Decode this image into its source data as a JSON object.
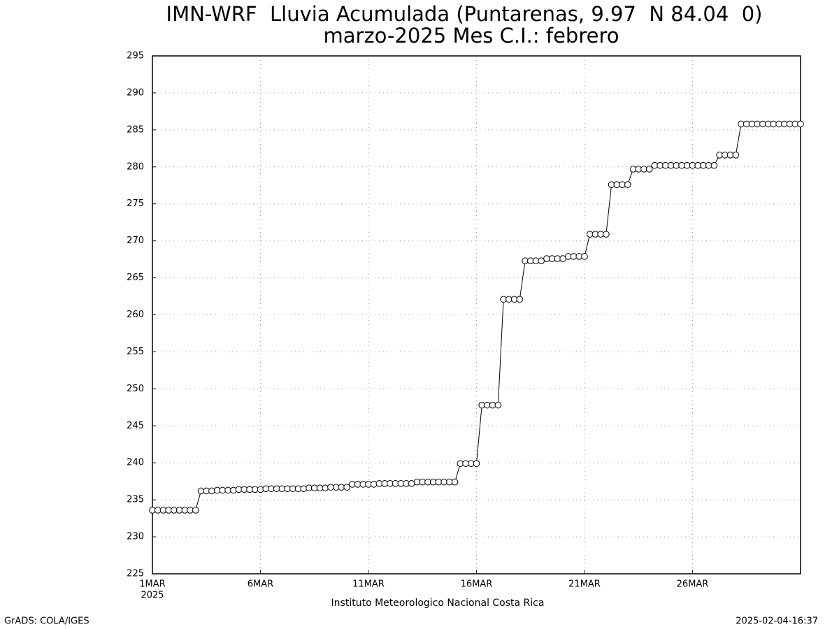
{
  "chart_data": {
    "type": "line",
    "title": "IMN-WRF  Lluvia Acumulada (Puntarenas, 9.97  N 84.04  0)",
    "subtitle": "marzo-2025 Mes C.I.: febrero",
    "x_label": "Instituto Meteorologico Nacional Costa Rica",
    "x_sublabel": "2025",
    "footer_left": "GrADS: COLA/IGES",
    "footer_right": "2025-02-04-16:37",
    "categories": [
      "1MAR",
      null,
      null,
      null,
      null,
      null,
      null,
      null,
      null,
      null,
      null,
      null,
      null,
      null,
      null,
      null,
      null,
      null,
      null,
      null,
      "6MAR",
      null,
      null,
      null,
      null,
      null,
      null,
      null,
      null,
      null,
      null,
      null,
      null,
      null,
      null,
      null,
      null,
      null,
      null,
      null,
      "11MAR",
      null,
      null,
      null,
      null,
      null,
      null,
      null,
      null,
      null,
      null,
      null,
      null,
      null,
      null,
      null,
      null,
      null,
      null,
      null,
      "16MAR",
      null,
      null,
      null,
      null,
      null,
      null,
      null,
      null,
      null,
      null,
      null,
      null,
      null,
      null,
      null,
      null,
      null,
      null,
      null,
      "21MAR",
      null,
      null,
      null,
      null,
      null,
      null,
      null,
      null,
      null,
      null,
      null,
      null,
      null,
      null,
      null,
      null,
      null,
      null,
      null,
      "26MAR",
      null,
      null,
      null,
      null,
      null,
      null,
      null,
      null,
      null,
      null,
      null,
      null,
      null,
      null,
      null,
      null,
      null,
      null,
      null,
      null
    ],
    "values": [
      233.6,
      233.6,
      233.6,
      233.6,
      233.6,
      233.6,
      233.6,
      233.6,
      233.6,
      236.2,
      236.2,
      236.2,
      236.3,
      236.3,
      236.3,
      236.3,
      236.4,
      236.4,
      236.4,
      236.4,
      236.4,
      236.5,
      236.5,
      236.5,
      236.5,
      236.5,
      236.5,
      236.5,
      236.5,
      236.6,
      236.6,
      236.6,
      236.6,
      236.7,
      236.7,
      236.7,
      236.7,
      237.1,
      237.1,
      237.1,
      237.1,
      237.1,
      237.2,
      237.2,
      237.2,
      237.2,
      237.2,
      237.2,
      237.2,
      237.4,
      237.4,
      237.4,
      237.4,
      237.4,
      237.4,
      237.4,
      237.4,
      239.9,
      239.9,
      239.9,
      239.9,
      247.8,
      247.8,
      247.8,
      247.8,
      262.1,
      262.1,
      262.1,
      262.1,
      267.3,
      267.3,
      267.3,
      267.3,
      267.6,
      267.6,
      267.6,
      267.6,
      267.9,
      267.9,
      267.9,
      267.9,
      270.9,
      270.9,
      270.9,
      270.9,
      277.6,
      277.6,
      277.6,
      277.6,
      279.7,
      279.7,
      279.7,
      279.7,
      280.2,
      280.2,
      280.2,
      280.2,
      280.2,
      280.2,
      280.2,
      280.2,
      280.2,
      280.2,
      280.2,
      280.2,
      281.6,
      281.6,
      281.6,
      281.6,
      285.8,
      285.8,
      285.8,
      285.8,
      285.8,
      285.8,
      285.8,
      285.8,
      285.8,
      285.8,
      285.8,
      285.8
    ],
    "color": "#000000",
    "ylim": [
      225,
      295
    ],
    "yticks": [
      225,
      230,
      235,
      240,
      245,
      250,
      255,
      260,
      265,
      270,
      275,
      280,
      285,
      290,
      295
    ],
    "grid": true
  }
}
